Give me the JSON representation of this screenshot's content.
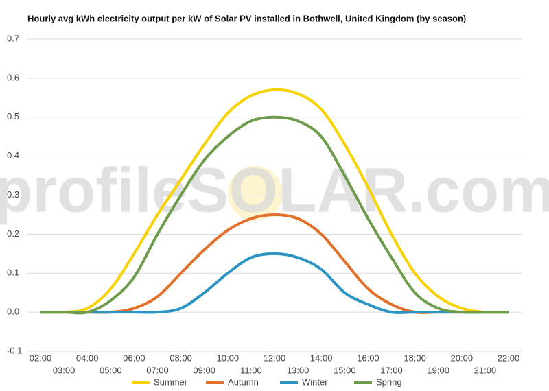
{
  "chart_data": {
    "type": "line",
    "title": "Hourly avg kWh electricity output per kW of Solar PV installed in Bothwell, United Kingdom (by season)",
    "watermark": "profileSOLAR.com",
    "categories": [
      "02:00",
      "03:00",
      "04:00",
      "05:00",
      "06:00",
      "07:00",
      "08:00",
      "09:00",
      "10:00",
      "11:00",
      "12:00",
      "13:00",
      "14:00",
      "15:00",
      "16:00",
      "17:00",
      "18:00",
      "19:00",
      "20:00",
      "21:00",
      "22:00"
    ],
    "series": [
      {
        "name": "Summer",
        "color": "#f7d200",
        "values": [
          0,
          0,
          0.01,
          0.06,
          0.15,
          0.25,
          0.34,
          0.43,
          0.51,
          0.555,
          0.57,
          0.56,
          0.52,
          0.43,
          0.32,
          0.2,
          0.1,
          0.04,
          0.01,
          0,
          0
        ]
      },
      {
        "name": "Autumn",
        "color": "#e2702a",
        "values": [
          0,
          0,
          0,
          0,
          0.01,
          0.04,
          0.1,
          0.16,
          0.21,
          0.24,
          0.25,
          0.24,
          0.2,
          0.13,
          0.06,
          0.02,
          0,
          0,
          0,
          0,
          0
        ]
      },
      {
        "name": "Winter",
        "color": "#2b94c3",
        "values": [
          0,
          0,
          0,
          0,
          0,
          0,
          0.01,
          0.05,
          0.1,
          0.14,
          0.15,
          0.14,
          0.11,
          0.05,
          0.02,
          0,
          0,
          0,
          0,
          0,
          0
        ]
      },
      {
        "name": "Spring",
        "color": "#6f9b4c",
        "values": [
          0,
          0,
          0,
          0.03,
          0.09,
          0.2,
          0.3,
          0.39,
          0.45,
          0.49,
          0.5,
          0.49,
          0.45,
          0.35,
          0.24,
          0.14,
          0.05,
          0.01,
          0,
          0,
          0
        ]
      }
    ],
    "ylim": [
      -0.1,
      0.7
    ],
    "yticks": [
      -0.1,
      {
        "value": 0,
        "label": "0.0"
      },
      0.1,
      0.2,
      0.3,
      0.4,
      0.5,
      0.6,
      0.7
    ],
    "grid": true,
    "legend": "bottom"
  }
}
